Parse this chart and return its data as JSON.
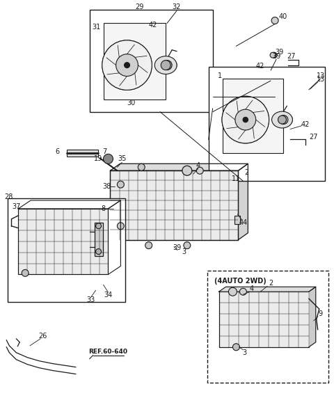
{
  "bg_color": "#ffffff",
  "line_color": "#1a1a1a",
  "fig_width": 4.8,
  "fig_height": 5.72,
  "dpi": 100,
  "lw": 0.8
}
